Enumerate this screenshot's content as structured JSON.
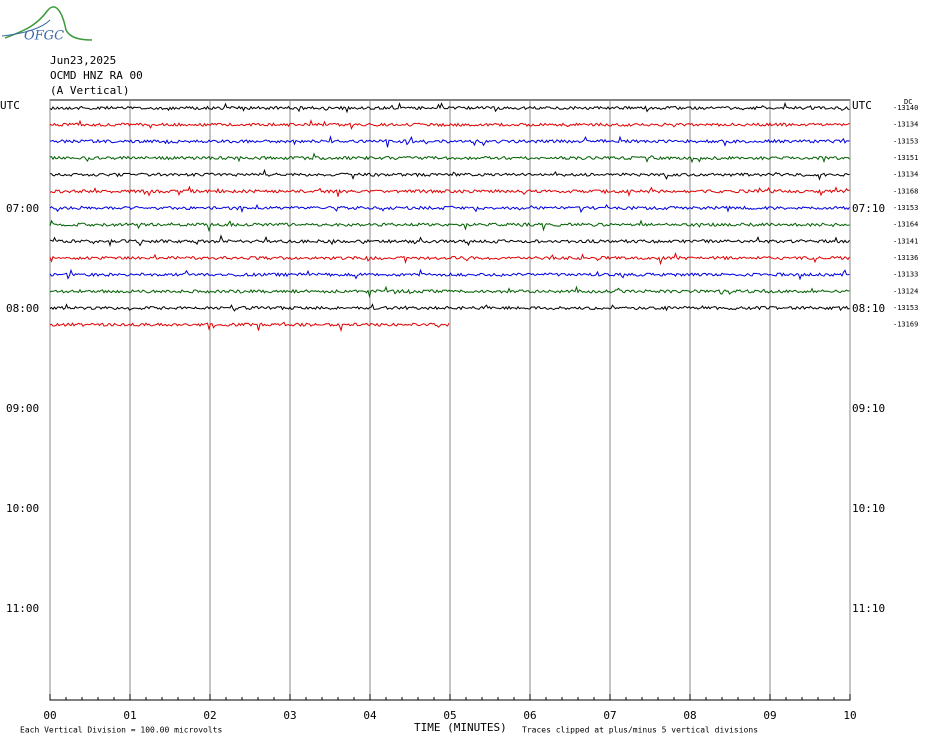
{
  "logo": "OFGC",
  "header": {
    "date": "Jun23,2025",
    "station": "OCMD HNZ RA 00",
    "component": "(A Vertical)"
  },
  "left_labels": [
    "UTC",
    "07:00",
    "08:00",
    "09:00",
    "10:00",
    "11:00"
  ],
  "right_labels": [
    "UTC",
    "07:10",
    "08:10",
    "09:10",
    "10:10",
    "11:10"
  ],
  "dc_label": "DC",
  "trace_offsets": [
    "-13140",
    "-13134",
    "-13153",
    "-13151",
    "-13134",
    "-13168",
    "-13153",
    "-13164",
    "-13141",
    "-13136",
    "-13133",
    "-13124",
    "-13153",
    "-13169"
  ],
  "x_ticks": [
    "00",
    "01",
    "02",
    "03",
    "04",
    "05",
    "06",
    "07",
    "08",
    "09",
    "10"
  ],
  "x_axis_label": "TIME (MINUTES)",
  "scale_note": "Each Vertical Division =  100.00 microvolts",
  "clip_note": "Traces clipped at plus/minus 5 vertical divisions"
}
